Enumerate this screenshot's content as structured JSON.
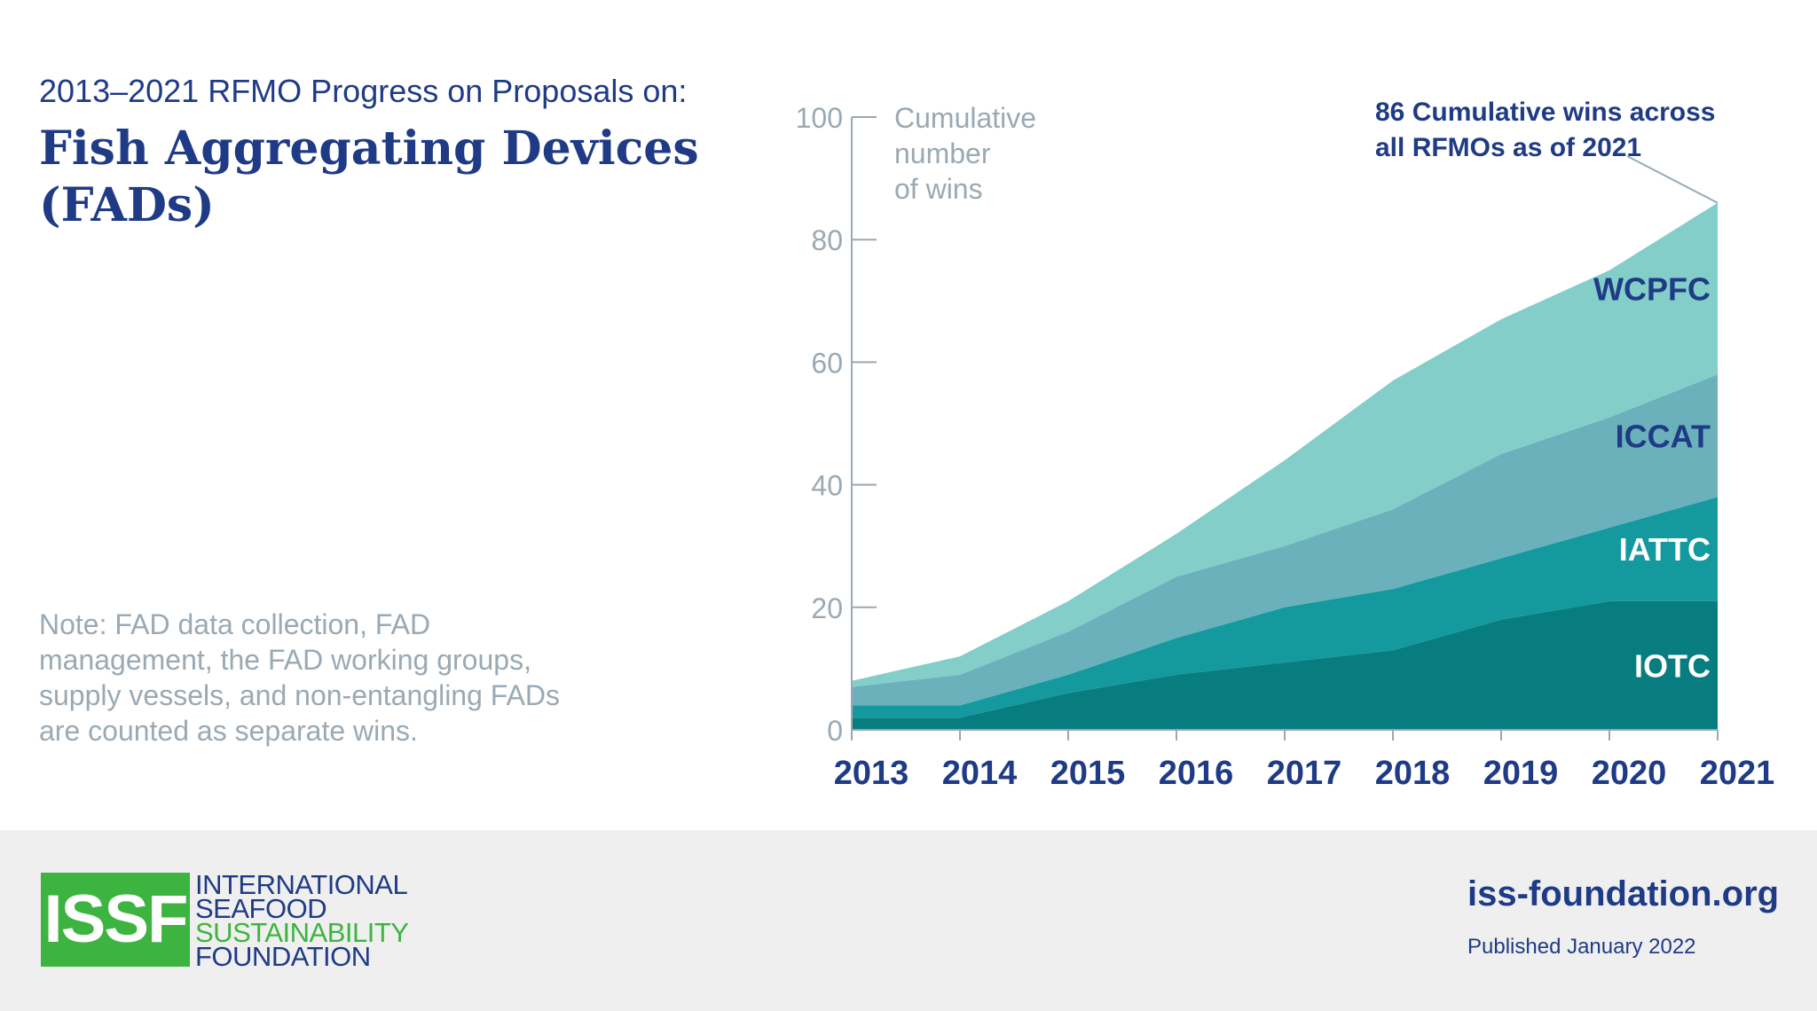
{
  "header": {
    "subtitle": "2013–2021 RFMO Progress on Proposals on:",
    "title": "Fish Aggregating Devices (FADs)"
  },
  "note": "Note: FAD data collection, FAD management, the FAD working groups, supply vessels, and non-entangling FADs are counted as separate wins.",
  "chart_data": {
    "type": "area",
    "stacked": true,
    "x": [
      2013,
      2014,
      2015,
      2016,
      2017,
      2018,
      2019,
      2020,
      2021
    ],
    "ylim": [
      0,
      100
    ],
    "yticks": [
      0,
      20,
      40,
      60,
      80,
      100
    ],
    "ylabel_lines": [
      "Cumulative",
      "number",
      "of wins"
    ],
    "grid": false,
    "series": [
      {
        "name": "IOTC",
        "values": [
          2,
          2,
          6,
          9,
          11,
          13,
          18,
          21,
          21
        ],
        "color": "#087d80",
        "label_color": "#ffffff"
      },
      {
        "name": "IATTC",
        "values": [
          2,
          2,
          3,
          6,
          9,
          10,
          10,
          12,
          17
        ],
        "color": "#14999f",
        "label_color": "#ffffff"
      },
      {
        "name": "ICCAT",
        "values": [
          3,
          5,
          7,
          10,
          10,
          13,
          17,
          18,
          20
        ],
        "color": "#6ab1bc",
        "label_color": "#1f3b86"
      },
      {
        "name": "WCPFC",
        "values": [
          1,
          3,
          5,
          7,
          14,
          21,
          22,
          24,
          28
        ],
        "color": "#83cec8",
        "label_color": "#1f3b86"
      }
    ],
    "annotation": {
      "lines": [
        "86 Cumulative wins across",
        "all RFMOs as of 2021"
      ],
      "value": 86,
      "x": 2021
    }
  },
  "footer": {
    "logo_mark": "ISSF",
    "logo_lines": [
      {
        "text": "INTERNATIONAL",
        "color": "#1f3b86"
      },
      {
        "text": "SEAFOOD",
        "color": "#1f3b86"
      },
      {
        "text": "SUSTAINABILITY",
        "color": "#3db43f"
      },
      {
        "text": "FOUNDATION",
        "color": "#1f3b86"
      }
    ],
    "website": "iss-foundation.org",
    "published": "Published January 2022"
  },
  "colors": {
    "brand_blue": "#1f3b86",
    "brand_green": "#3db43f",
    "axis": "#9aa9b3"
  }
}
